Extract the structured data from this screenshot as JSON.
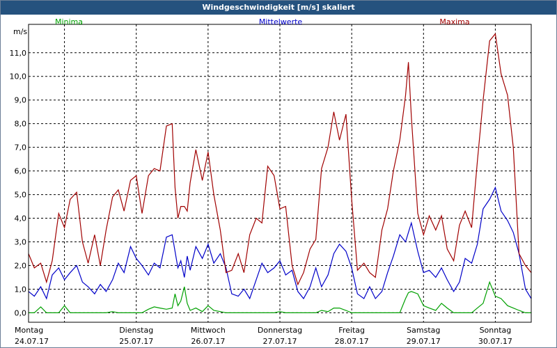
{
  "window": {
    "title": "Windgeschwindigkeit [m/s] skaliert"
  },
  "chart_data": {
    "type": "line",
    "title": "Windgeschwindigkeit [m/s] skaliert",
    "ylabel": "m/s",
    "xlabel": "",
    "ylim": [
      -0.4,
      12.2
    ],
    "yticks": [
      0,
      1,
      2,
      3,
      4,
      5,
      6,
      7,
      8,
      9,
      10,
      11
    ],
    "ytick_labels": [
      "0,0",
      "1,0",
      "2,0",
      "3,0",
      "4,0",
      "5,0",
      "6,0",
      "7,0",
      "8,0",
      "9,0",
      "10,0",
      "11,0"
    ],
    "xlim": [
      0,
      7
    ],
    "day_labels": [
      {
        "weekday": "Montag",
        "date": "24.07.17"
      },
      {
        "weekday": "Dienstag",
        "date": "25.07.17"
      },
      {
        "weekday": "Mittwoch",
        "date": "26.07.17"
      },
      {
        "weekday": "Donnerstag",
        "date": "27.07.17"
      },
      {
        "weekday": "Freitag",
        "date": "28.07.17"
      },
      {
        "weekday": "Samstag",
        "date": "29.07.17"
      },
      {
        "weekday": "Sonntag",
        "date": "30.07.17"
      }
    ],
    "legend_placement": "top",
    "grid": true,
    "series": [
      {
        "name": "Minima",
        "color": "#00a000",
        "x": [
          0,
          0.08,
          0.17,
          0.25,
          0.33,
          0.42,
          0.5,
          0.58,
          0.67,
          0.75,
          0.83,
          0.92,
          1,
          1.08,
          1.17,
          1.25,
          1.33,
          1.42,
          1.5,
          1.58,
          1.67,
          1.75,
          1.83,
          1.92,
          2,
          2.04,
          2.08,
          2.12,
          2.17,
          2.21,
          2.25,
          2.33,
          2.42,
          2.5,
          2.58,
          2.67,
          2.75,
          2.83,
          2.92,
          3,
          3.08,
          3.17,
          3.25,
          3.33,
          3.42,
          3.5,
          3.58,
          3.67,
          3.75,
          3.83,
          3.92,
          4,
          4.08,
          4.17,
          4.25,
          4.33,
          4.42,
          4.5,
          4.58,
          4.67,
          4.75,
          4.83,
          4.92,
          5,
          5.08,
          5.17,
          5.25,
          5.29,
          5.33,
          5.42,
          5.5,
          5.58,
          5.67,
          5.75,
          5.83,
          5.92,
          6,
          6.08,
          6.17,
          6.25,
          6.33,
          6.42,
          6.5,
          6.58,
          6.67,
          6.75,
          6.83,
          6.92,
          7
        ],
        "values": [
          0,
          0,
          0.25,
          0,
          0,
          0,
          0.3,
          0,
          0,
          0,
          0,
          0,
          0,
          0,
          0.05,
          0,
          0,
          0,
          0,
          0,
          0.15,
          0.25,
          0.2,
          0.15,
          0.2,
          0.8,
          0.3,
          0.5,
          1.1,
          0.4,
          0.1,
          0.2,
          0.05,
          0.3,
          0.1,
          0.05,
          0,
          0,
          0,
          0,
          0,
          0,
          0,
          0,
          0,
          0.05,
          0,
          0,
          0,
          0,
          0,
          0,
          0.1,
          0.05,
          0.2,
          0.2,
          0.1,
          0,
          0,
          0,
          0,
          0,
          0,
          0,
          0,
          0,
          0.6,
          0.85,
          0.9,
          0.8,
          0.3,
          0.2,
          0.1,
          0.4,
          0.2,
          0,
          0,
          0,
          0,
          0.2,
          0.4,
          1.3,
          0.7,
          0.6,
          0.3,
          0.2,
          0.1,
          0,
          0
        ]
      },
      {
        "name": "Mittelwerte",
        "color": "#0000c8",
        "x": [
          0,
          0.08,
          0.17,
          0.25,
          0.33,
          0.42,
          0.5,
          0.58,
          0.67,
          0.75,
          0.83,
          0.92,
          1,
          1.08,
          1.17,
          1.25,
          1.33,
          1.42,
          1.5,
          1.58,
          1.67,
          1.75,
          1.83,
          1.92,
          2,
          2.04,
          2.08,
          2.12,
          2.17,
          2.21,
          2.25,
          2.33,
          2.42,
          2.5,
          2.58,
          2.67,
          2.75,
          2.83,
          2.92,
          3,
          3.08,
          3.17,
          3.25,
          3.33,
          3.42,
          3.5,
          3.58,
          3.67,
          3.75,
          3.83,
          3.92,
          4,
          4.08,
          4.17,
          4.25,
          4.33,
          4.42,
          4.5,
          4.58,
          4.67,
          4.75,
          4.83,
          4.92,
          5,
          5.08,
          5.17,
          5.25,
          5.29,
          5.33,
          5.42,
          5.5,
          5.58,
          5.67,
          5.75,
          5.83,
          5.92,
          6,
          6.08,
          6.17,
          6.25,
          6.33,
          6.42,
          6.5,
          6.58,
          6.67,
          6.75,
          6.83,
          6.92,
          7
        ],
        "values": [
          0.9,
          0.7,
          1.1,
          0.6,
          1.6,
          1.9,
          1.4,
          1.7,
          2.0,
          1.3,
          1.1,
          0.8,
          1.2,
          0.9,
          1.4,
          2.1,
          1.7,
          2.8,
          2.3,
          2.0,
          1.6,
          2.1,
          1.9,
          3.2,
          3.3,
          2.6,
          1.9,
          2.2,
          1.5,
          2.4,
          1.8,
          2.8,
          2.3,
          2.9,
          2.1,
          2.5,
          1.9,
          0.8,
          0.7,
          1.0,
          0.6,
          1.4,
          2.1,
          1.7,
          1.9,
          2.2,
          1.6,
          1.8,
          0.9,
          0.6,
          1.1,
          1.9,
          1.1,
          1.6,
          2.5,
          2.9,
          2.6,
          1.9,
          0.8,
          0.6,
          1.1,
          0.6,
          0.9,
          1.7,
          2.4,
          3.3,
          3.0,
          3.4,
          3.8,
          2.6,
          1.7,
          1.8,
          1.5,
          1.9,
          1.4,
          0.9,
          1.3,
          2.3,
          2.1,
          2.9,
          4.4,
          4.8,
          5.3,
          4.3,
          3.9,
          3.4,
          2.5,
          1.0,
          0.6
        ]
      },
      {
        "name": "Maxima",
        "color": "#a00000",
        "x": [
          0,
          0.08,
          0.17,
          0.25,
          0.33,
          0.42,
          0.5,
          0.58,
          0.67,
          0.75,
          0.83,
          0.92,
          1,
          1.08,
          1.17,
          1.25,
          1.33,
          1.42,
          1.5,
          1.58,
          1.67,
          1.75,
          1.83,
          1.92,
          2,
          2.04,
          2.08,
          2.12,
          2.17,
          2.21,
          2.25,
          2.33,
          2.42,
          2.5,
          2.58,
          2.67,
          2.75,
          2.83,
          2.92,
          3,
          3.08,
          3.17,
          3.25,
          3.33,
          3.42,
          3.5,
          3.58,
          3.67,
          3.75,
          3.83,
          3.92,
          4,
          4.08,
          4.17,
          4.25,
          4.33,
          4.42,
          4.5,
          4.58,
          4.67,
          4.75,
          4.83,
          4.92,
          5,
          5.08,
          5.17,
          5.25,
          5.29,
          5.33,
          5.42,
          5.5,
          5.58,
          5.67,
          5.75,
          5.83,
          5.92,
          6,
          6.08,
          6.17,
          6.25,
          6.33,
          6.42,
          6.5,
          6.58,
          6.67,
          6.75,
          6.83,
          6.92,
          7
        ],
        "values": [
          2.5,
          1.9,
          2.1,
          1.3,
          2.2,
          4.2,
          3.6,
          4.8,
          5.1,
          3.0,
          2.1,
          3.3,
          2.0,
          3.5,
          4.9,
          5.2,
          4.3,
          5.6,
          5.8,
          4.2,
          5.8,
          6.1,
          6.0,
          7.9,
          8.0,
          5.3,
          4.0,
          4.5,
          4.5,
          4.3,
          5.5,
          6.9,
          5.6,
          6.8,
          5.0,
          3.5,
          1.7,
          1.8,
          2.5,
          1.7,
          3.3,
          4.0,
          3.8,
          6.2,
          5.8,
          4.4,
          4.5,
          2.0,
          1.2,
          1.7,
          2.7,
          3.1,
          6.1,
          7.0,
          8.5,
          7.3,
          8.4,
          4.8,
          1.8,
          2.1,
          1.7,
          1.5,
          3.5,
          4.4,
          6.0,
          7.3,
          9.2,
          10.6,
          8.3,
          4.2,
          3.3,
          4.1,
          3.5,
          4.1,
          2.7,
          2.2,
          3.7,
          4.3,
          3.6,
          6.4,
          9.0,
          11.5,
          11.8,
          10.1,
          9.2,
          7.0,
          2.5,
          2.0,
          1.7
        ]
      }
    ]
  }
}
